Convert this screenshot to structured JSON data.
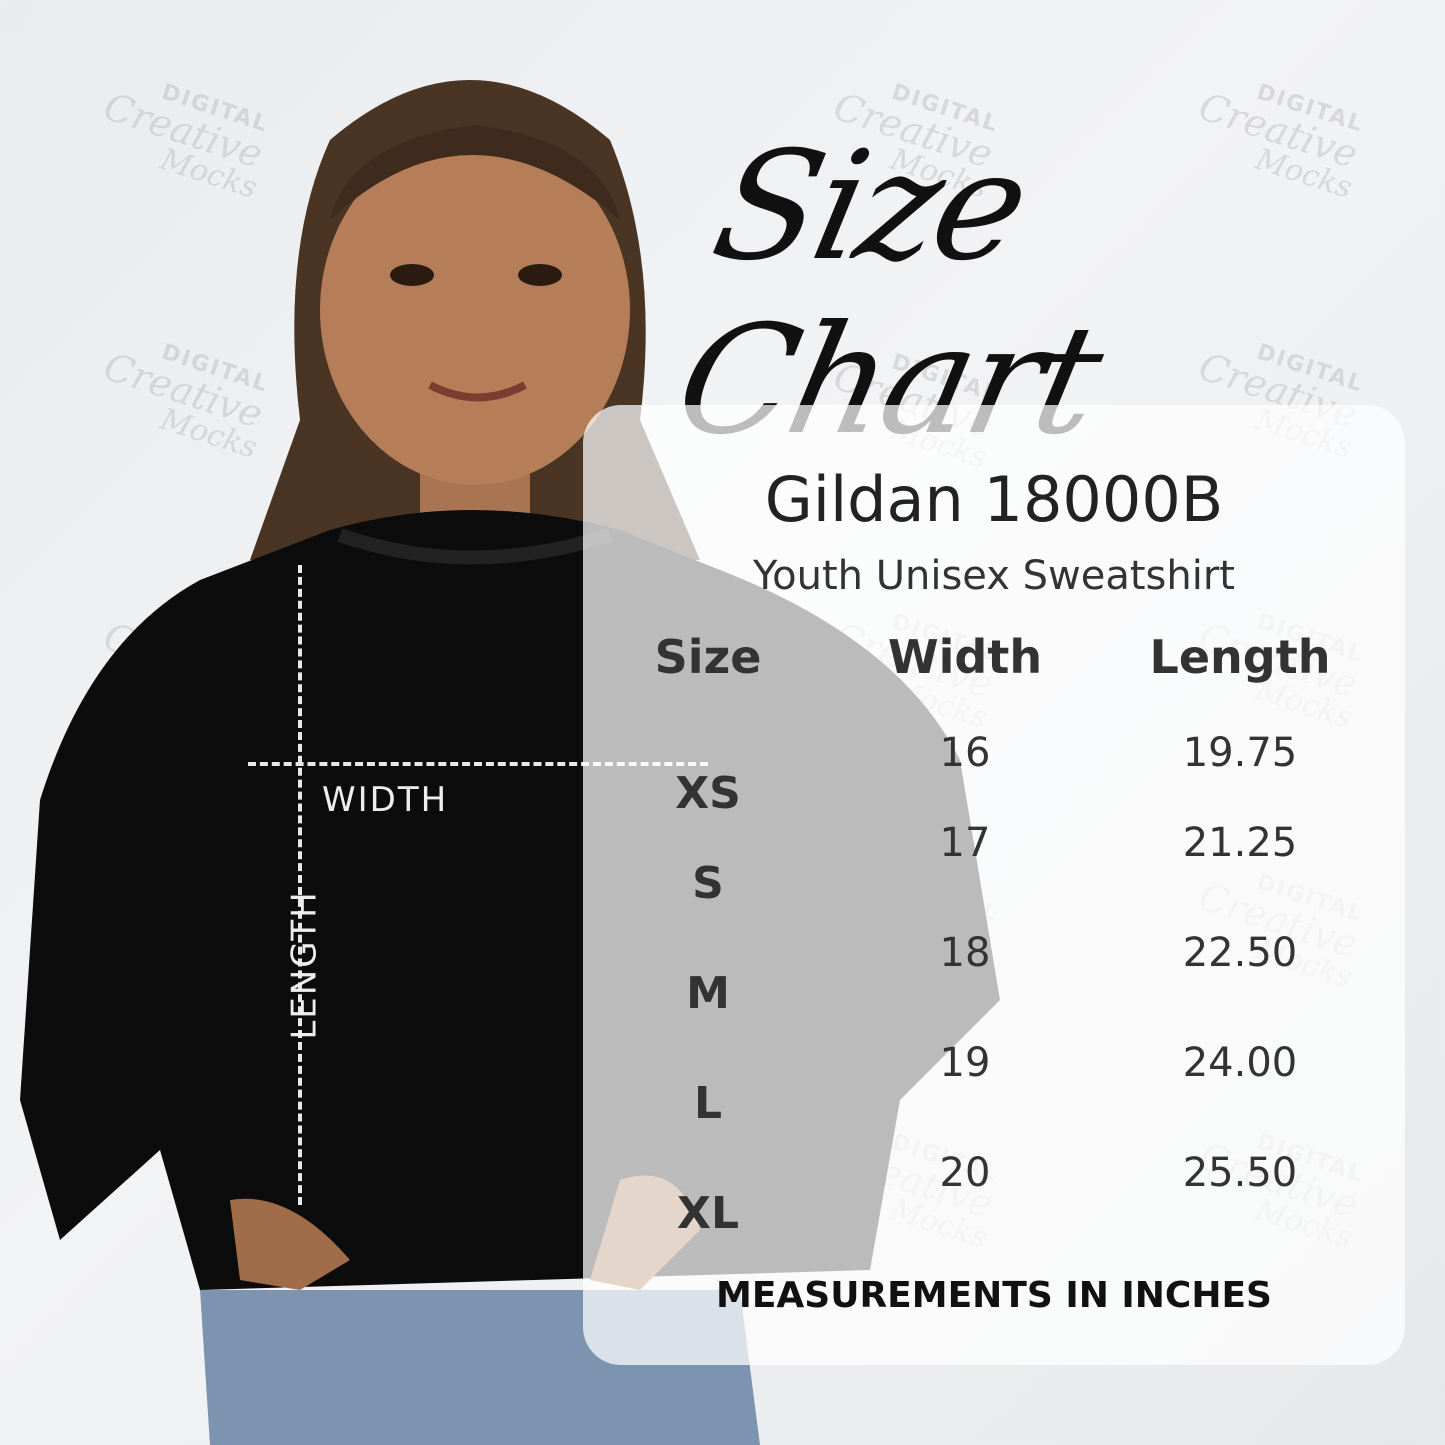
{
  "title": "Size Chart",
  "watermark": {
    "line1": "DIGITAL",
    "line2": "Creative",
    "line3": "Mocks"
  },
  "diagram": {
    "width_label": "WIDTH",
    "length_label": "LENGTH"
  },
  "panel": {
    "brand": "Gildan 18000B",
    "subtitle": "Youth Unisex Sweatshirt",
    "headers": [
      "Size",
      "Width",
      "Length"
    ],
    "rows": [
      {
        "size": "XS",
        "width": "16",
        "length": "19.75"
      },
      {
        "size": "S",
        "width": "17",
        "length": "21.25"
      },
      {
        "size": "M",
        "width": "18",
        "length": "22.50"
      },
      {
        "size": "L",
        "width": "19",
        "length": "24.00"
      },
      {
        "size": "XL",
        "width": "20",
        "length": "25.50"
      }
    ],
    "footer": "MEASUREMENTS IN INCHES"
  }
}
